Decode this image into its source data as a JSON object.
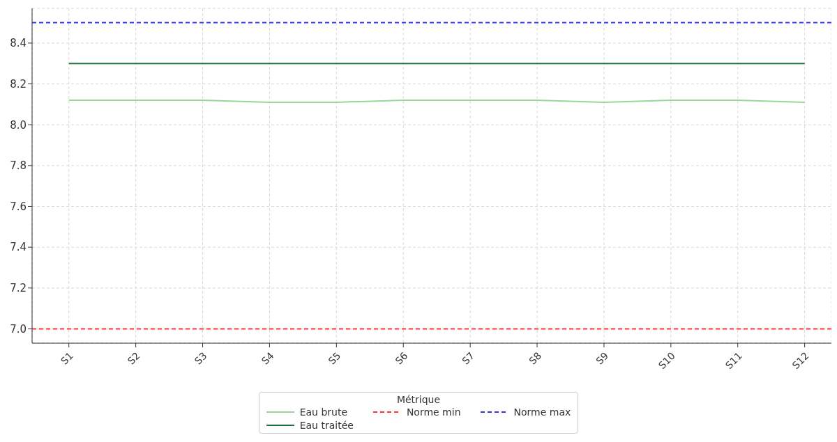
{
  "chart_data": {
    "type": "line",
    "categories": [
      "S1",
      "S2",
      "S3",
      "S4",
      "S5",
      "S6",
      "S7",
      "S8",
      "S9",
      "S10",
      "S11",
      "S12"
    ],
    "series": [
      {
        "name": "Eau brute",
        "color": "#98d69a",
        "values": [
          8.12,
          8.12,
          8.12,
          8.11,
          8.11,
          8.12,
          8.12,
          8.12,
          8.11,
          8.12,
          8.12,
          8.11
        ]
      },
      {
        "name": "Eau traitée",
        "color": "#1e7040",
        "values": [
          8.3,
          8.3,
          8.3,
          8.3,
          8.3,
          8.3,
          8.3,
          8.3,
          8.3,
          8.3,
          8.3,
          8.3
        ]
      }
    ],
    "ref_lines": [
      {
        "axis": "y",
        "value": 7.0,
        "label": "Norme min",
        "color": "#ff3333",
        "line_style": "dashed"
      },
      {
        "axis": "y",
        "value": 8.5,
        "label": "Norme max",
        "color": "#3333ee",
        "line_style": "dashed"
      }
    ],
    "ylim": [
      6.93,
      8.57
    ],
    "yticks": [
      {
        "value": 7.0,
        "label": "7.0"
      },
      {
        "value": 7.2,
        "label": "7.2"
      },
      {
        "value": 7.4,
        "label": "7.4"
      },
      {
        "value": 7.6,
        "label": "7.6"
      },
      {
        "value": 7.8,
        "label": "7.8"
      },
      {
        "value": 8.0,
        "label": "8.0"
      },
      {
        "value": 8.2,
        "label": "8.2"
      },
      {
        "value": 8.4,
        "label": "8.4"
      }
    ],
    "grid": true,
    "legend": "bottom",
    "legend_title": "Métrique",
    "marker": "none",
    "line_style": "solid"
  }
}
